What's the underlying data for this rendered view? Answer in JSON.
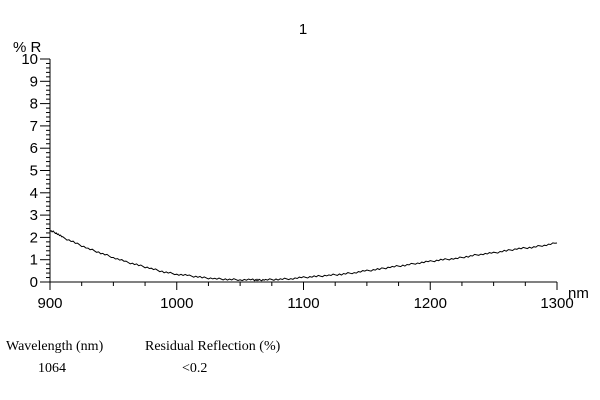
{
  "chart_data": {
    "type": "line",
    "title": "1",
    "ylabel": "% R",
    "xlabel": "nm",
    "xlim": [
      900,
      1300
    ],
    "ylim": [
      0,
      10
    ],
    "x_ticks": [
      "900",
      "1000",
      "1100",
      "1200",
      "1300"
    ],
    "y_ticks": [
      "0",
      "1",
      "2",
      "3",
      "4",
      "5",
      "6",
      "7",
      "8",
      "9",
      "10"
    ],
    "grid": false,
    "series": [
      {
        "x": [
          900,
          905,
          910,
          920,
          930,
          940,
          950,
          960,
          970,
          980,
          990,
          1000,
          1010,
          1020,
          1030,
          1040,
          1050,
          1060,
          1064,
          1070,
          1080,
          1090,
          1100,
          1110,
          1120,
          1130,
          1140,
          1150,
          1160,
          1170,
          1180,
          1190,
          1200,
          1210,
          1220,
          1230,
          1240,
          1250,
          1260,
          1270,
          1280,
          1290,
          1300
        ],
        "y": [
          2.3,
          2.2,
          2.0,
          1.75,
          1.5,
          1.3,
          1.1,
          0.9,
          0.75,
          0.6,
          0.45,
          0.35,
          0.28,
          0.2,
          0.15,
          0.12,
          0.1,
          0.1,
          0.08,
          0.1,
          0.12,
          0.15,
          0.2,
          0.25,
          0.3,
          0.35,
          0.42,
          0.5,
          0.58,
          0.68,
          0.75,
          0.85,
          0.92,
          1.0,
          1.05,
          1.15,
          1.25,
          1.3,
          1.4,
          1.5,
          1.55,
          1.65,
          1.75
        ]
      }
    ]
  },
  "table": {
    "headers": [
      "Wavelength (nm)",
      "Residual Reflection (%)"
    ],
    "values": [
      "1064",
      "<0.2"
    ]
  }
}
